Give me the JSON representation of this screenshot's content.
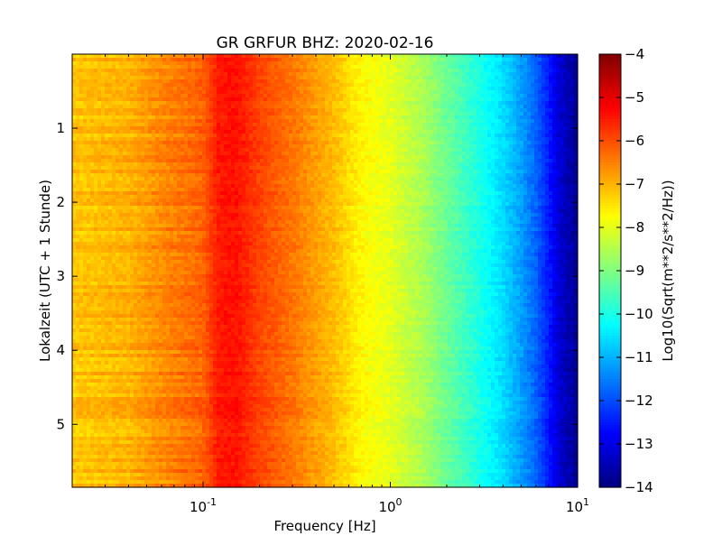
{
  "chart_data": {
    "type": "heatmap",
    "title": "GR GRFUR BHZ: 2020-02-16",
    "xlabel": "Frequency [Hz]",
    "ylabel": "Lokalzeit (UTC + 1 Stunde)",
    "colorbar_label": "Log10(Sqrt(m**2/s**2/Hz))",
    "x_scale": "log",
    "xlim": [
      0.02,
      10
    ],
    "ylim": [
      5.85,
      0
    ],
    "x_ticks": [
      {
        "value": 0.1,
        "base": "10",
        "exp": "-1"
      },
      {
        "value": 1,
        "base": "10",
        "exp": "0"
      },
      {
        "value": 10,
        "base": "10",
        "exp": "1"
      }
    ],
    "y_ticks": [
      {
        "value": 1,
        "label": "1"
      },
      {
        "value": 2,
        "label": "2"
      },
      {
        "value": 3,
        "label": "3"
      },
      {
        "value": 4,
        "label": "4"
      },
      {
        "value": 5,
        "label": "5"
      }
    ],
    "color_range": [
      -14,
      -4
    ],
    "colormap": "jet",
    "colorbar_ticks": [
      {
        "value": -4,
        "label": "−4"
      },
      {
        "value": -5,
        "label": "−5"
      },
      {
        "value": -6,
        "label": "−6"
      },
      {
        "value": -7,
        "label": "−7"
      },
      {
        "value": -8,
        "label": "−8"
      },
      {
        "value": -9,
        "label": "−9"
      },
      {
        "value": -10,
        "label": "−10"
      },
      {
        "value": -11,
        "label": "−11"
      },
      {
        "value": -12,
        "label": "−12"
      },
      {
        "value": -13,
        "label": "−13"
      },
      {
        "value": -14,
        "label": "−14"
      }
    ],
    "frequency_profile": [
      {
        "freq": 0.02,
        "value": -7.2
      },
      {
        "freq": 0.04,
        "value": -7.0
      },
      {
        "freq": 0.06,
        "value": -6.6
      },
      {
        "freq": 0.1,
        "value": -6.2
      },
      {
        "freq": 0.12,
        "value": -5.5
      },
      {
        "freq": 0.15,
        "value": -5.4
      },
      {
        "freq": 0.2,
        "value": -5.9
      },
      {
        "freq": 0.3,
        "value": -6.4
      },
      {
        "freq": 0.4,
        "value": -6.8
      },
      {
        "freq": 0.5,
        "value": -7.1
      },
      {
        "freq": 0.7,
        "value": -7.7
      },
      {
        "freq": 1.0,
        "value": -8.0
      },
      {
        "freq": 1.5,
        "value": -8.6
      },
      {
        "freq": 2.0,
        "value": -9.2
      },
      {
        "freq": 3.0,
        "value": -10.0
      },
      {
        "freq": 4.0,
        "value": -10.6
      },
      {
        "freq": 5.0,
        "value": -11.2
      },
      {
        "freq": 6.0,
        "value": -11.8
      },
      {
        "freq": 7.0,
        "value": -12.5
      },
      {
        "freq": 8.0,
        "value": -13.2
      },
      {
        "freq": 10.0,
        "value": -13.8
      }
    ],
    "grid": false
  }
}
